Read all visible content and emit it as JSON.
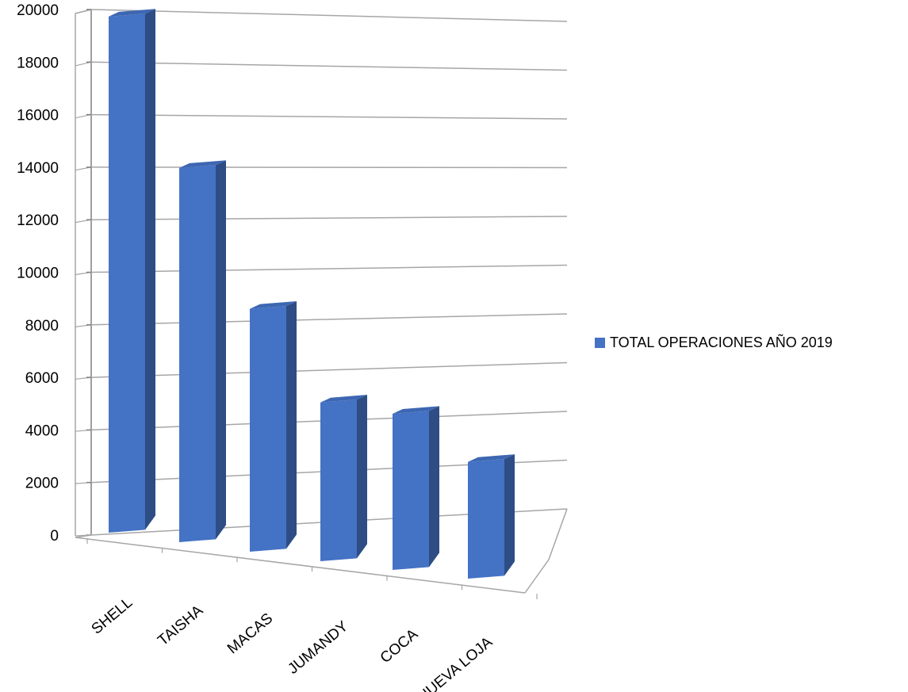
{
  "chart_data": {
    "type": "bar",
    "categories": [
      "SHELL",
      "TAISHA",
      "MACAS",
      "JUMANDY",
      "COCA",
      "NUEVA LOJA"
    ],
    "series": [
      {
        "name": "TOTAL OPERACIONES AÑO 2019",
        "values": [
          19400,
          14000,
          9000,
          5800,
          5700,
          4200
        ],
        "color": "#4472C4"
      }
    ],
    "y_ticks": [
      "0",
      "2000",
      "4000",
      "6000",
      "8000",
      "10000",
      "12000",
      "14000",
      "16000",
      "18000",
      "20000"
    ],
    "ylim": [
      0,
      20000
    ],
    "grid": true,
    "legend": "right",
    "style": "3d-column"
  }
}
